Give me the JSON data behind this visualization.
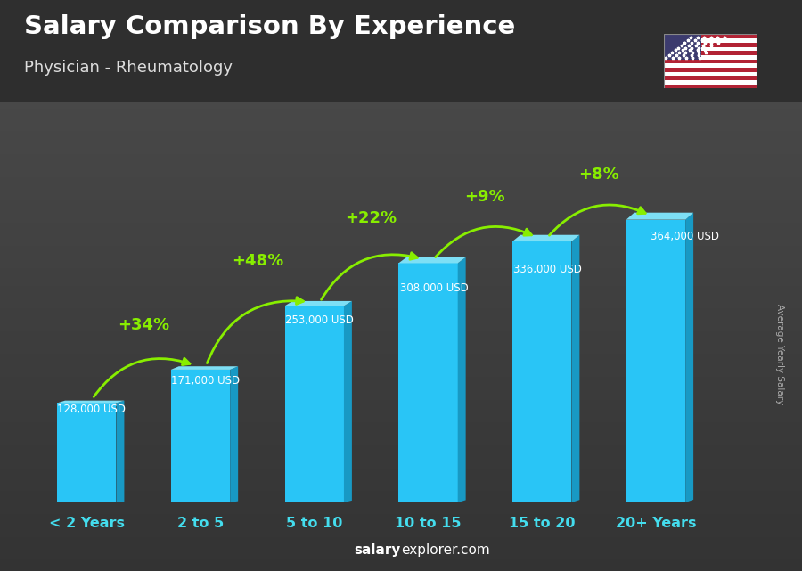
{
  "title": "Salary Comparison By Experience",
  "subtitle": "Physician - Rheumatology",
  "categories": [
    "< 2 Years",
    "2 to 5",
    "5 to 10",
    "10 to 15",
    "15 to 20",
    "20+ Years"
  ],
  "values": [
    128000,
    171000,
    253000,
    308000,
    336000,
    364000
  ],
  "labels": [
    "128,000 USD",
    "171,000 USD",
    "253,000 USD",
    "308,000 USD",
    "336,000 USD",
    "364,000 USD"
  ],
  "pct_changes": [
    "+34%",
    "+48%",
    "+22%",
    "+9%",
    "+8%"
  ],
  "bar_color_face": "#29c5f6",
  "bar_color_light": "#7ddff5",
  "bar_color_dark": "#1899c4",
  "bg_top_color": "#3a3a3a",
  "bg_bottom_color": "#555555",
  "title_color": "#ffffff",
  "subtitle_color": "#dddddd",
  "label_color": "#ffffff",
  "pct_color": "#88ee00",
  "xlabel_color": "#44ddee",
  "footer_salary_color": "#ffffff",
  "footer_explorer_color": "#ffffff",
  "ylabel_text": "Average Yearly Salary",
  "ylabel_color": "#aaaaaa",
  "footer_bold": "salary",
  "footer_normal": "explorer.com"
}
